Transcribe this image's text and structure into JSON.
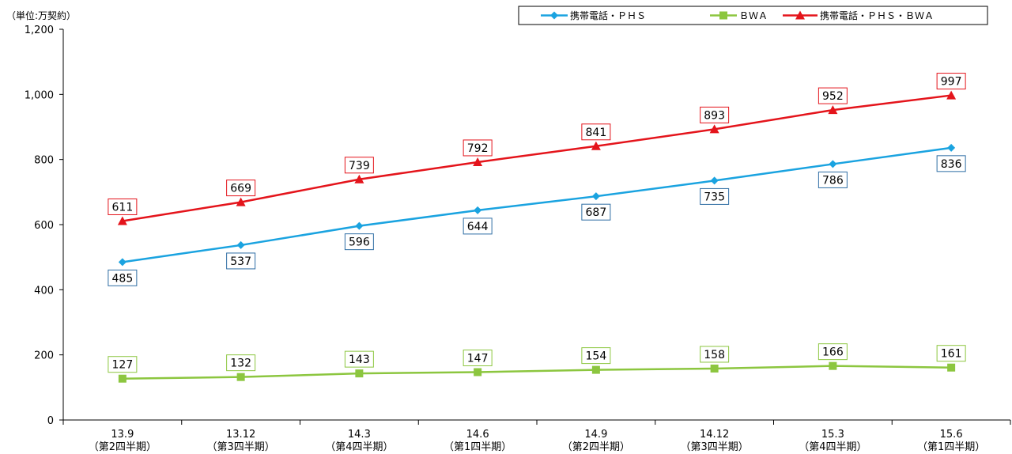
{
  "chart_data": {
    "type": "line",
    "unit_label": "（単位:万契約）",
    "categories": [
      "13.9",
      "13.12",
      "14.3",
      "14.6",
      "14.9",
      "14.12",
      "15.3",
      "15.6"
    ],
    "category_sublabels": [
      "（第2四半期）",
      "（第3四半期）",
      "（第4四半期）",
      "（第1四半期）",
      "（第2四半期）",
      "（第3四半期）",
      "（第4四半期）",
      "（第1四半期）"
    ],
    "ylim": [
      0,
      1200
    ],
    "yticks": [
      0,
      200,
      400,
      600,
      800,
      1000,
      1200
    ],
    "ytick_labels": [
      "0",
      "200",
      "400",
      "600",
      "800",
      "1,000",
      "1,200"
    ],
    "grid": false,
    "legend_position": "top-right",
    "series": [
      {
        "name": "携帯電話・ＰＨＳ",
        "values": [
          485,
          537,
          596,
          644,
          687,
          735,
          786,
          836
        ],
        "color": "#1aa3e0",
        "label_border": "#2e6da4",
        "marker": "diamond",
        "label_position": "below"
      },
      {
        "name": "ＢＷＡ",
        "values": [
          127,
          132,
          143,
          147,
          154,
          158,
          166,
          161
        ],
        "color": "#8cc63f",
        "label_border": "#8cc63f",
        "marker": "square",
        "label_position": "above"
      },
      {
        "name": "携帯電話・ＰＨＳ・ＢＷＡ",
        "values": [
          611,
          669,
          739,
          792,
          841,
          893,
          952,
          997
        ],
        "color": "#e4141b",
        "label_border": "#e4141b",
        "marker": "triangle",
        "label_position": "above"
      }
    ]
  }
}
